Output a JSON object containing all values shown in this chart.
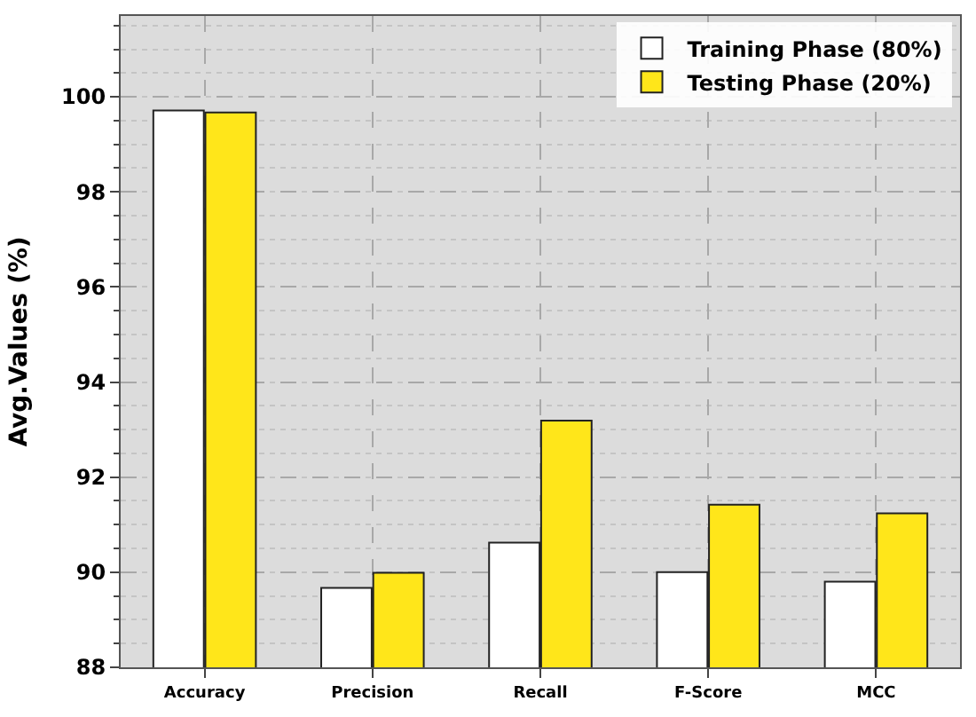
{
  "chart_data": {
    "type": "bar",
    "ylabel": "Avg.Values (%)",
    "categories": [
      "Accuracy",
      "Precision",
      "Recall",
      "F-Score",
      "MCC"
    ],
    "series": [
      {
        "name": "Training Phase (80%)",
        "color": "#ffffff",
        "values": [
          99.71,
          89.67,
          90.62,
          90.0,
          89.8
        ]
      },
      {
        "name": "Testing Phase (20%)",
        "color": "#ffe61a",
        "values": [
          99.67,
          89.99,
          93.19,
          91.42,
          91.24
        ]
      }
    ],
    "ylim": [
      88,
      101.7
    ],
    "yticks": [
      88,
      90,
      92,
      94,
      96,
      98,
      100
    ],
    "grid": true,
    "legend": "top right"
  }
}
